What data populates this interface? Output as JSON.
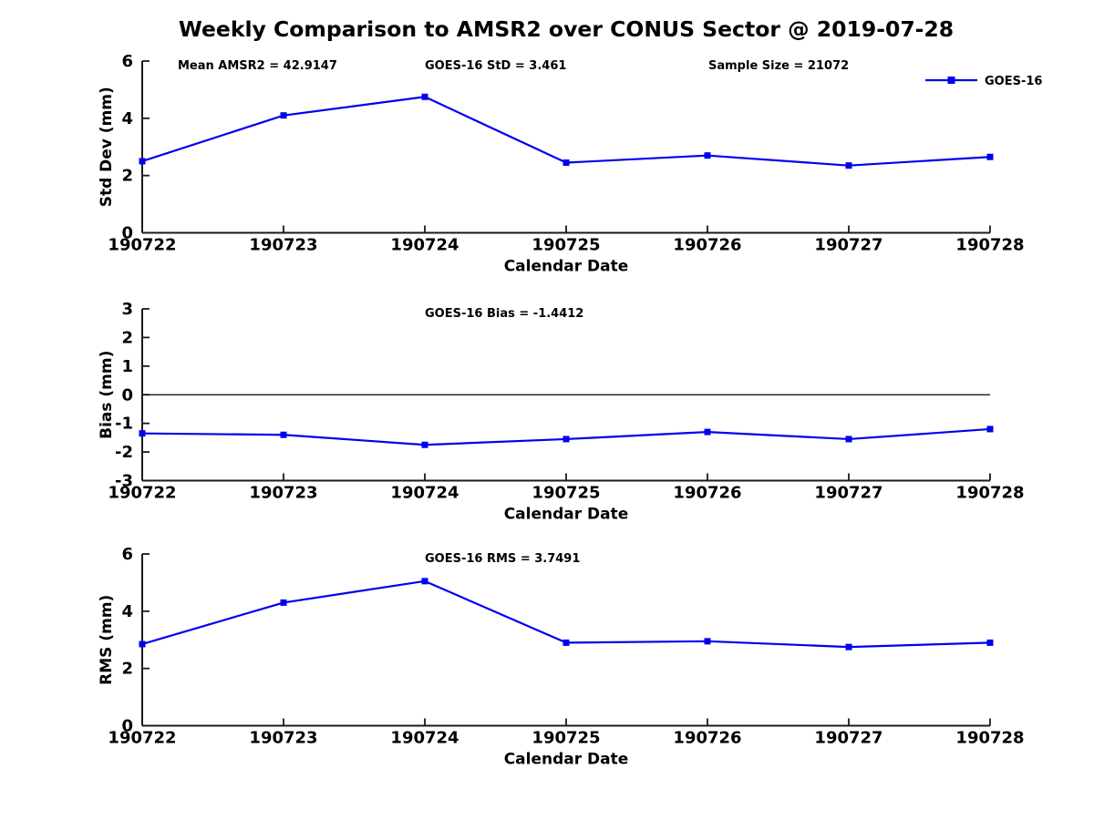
{
  "title": "Weekly Comparison to AMSR2 over CONUS Sector @ 2019-07-28",
  "colors": {
    "series_line": "#0000ee",
    "axis": "#1a1a1a",
    "zero_line": "#000000",
    "text": "#000000"
  },
  "legend": {
    "label": "GOES-16"
  },
  "chart_data": [
    {
      "type": "line",
      "name": "std-dev-subplot",
      "annotations": [
        "Mean AMSR2 = 42.9147",
        "GOES-16 StD = 3.461",
        "Sample Size = 21072"
      ],
      "categories": [
        "190722",
        "190723",
        "190724",
        "190725",
        "190726",
        "190727",
        "190728"
      ],
      "series": [
        {
          "name": "GOES-16",
          "marker": "square",
          "values": [
            2.5,
            4.1,
            4.75,
            2.45,
            2.7,
            2.35,
            2.65
          ]
        }
      ],
      "xlabel": "Calendar Date",
      "ylabel": "Std Dev (mm)",
      "ylim": [
        0,
        6
      ],
      "yticks": [
        0,
        2,
        4,
        6
      ],
      "zero_line": false,
      "grid": false,
      "legend": true,
      "legend_position": "top-right"
    },
    {
      "type": "line",
      "name": "bias-subplot",
      "annotations": [
        "GOES-16 Bias  = -1.4412"
      ],
      "categories": [
        "190722",
        "190723",
        "190724",
        "190725",
        "190726",
        "190727",
        "190728"
      ],
      "series": [
        {
          "name": "GOES-16",
          "marker": "square",
          "values": [
            -1.35,
            -1.4,
            -1.75,
            -1.55,
            -1.3,
            -1.55,
            -1.2
          ]
        }
      ],
      "xlabel": "Calendar Date",
      "ylabel": "Bias (mm)",
      "ylim": [
        -3,
        3
      ],
      "yticks": [
        -3,
        -2,
        -1,
        0,
        1,
        2,
        3
      ],
      "zero_line": true,
      "grid": false,
      "legend": false,
      "legend_position": "none"
    },
    {
      "type": "line",
      "name": "rms-subplot",
      "annotations": [
        "GOES-16 RMS = 3.7491"
      ],
      "categories": [
        "190722",
        "190723",
        "190724",
        "190725",
        "190726",
        "190727",
        "190728"
      ],
      "series": [
        {
          "name": "GOES-16",
          "marker": "square",
          "values": [
            2.85,
            4.3,
            5.05,
            2.9,
            2.95,
            2.75,
            2.9
          ]
        }
      ],
      "xlabel": "Calendar Date",
      "ylabel": "RMS (mm)",
      "ylim": [
        0,
        6
      ],
      "yticks": [
        0,
        2,
        4,
        6
      ],
      "zero_line": false,
      "grid": false,
      "legend": false,
      "legend_position": "none"
    }
  ]
}
